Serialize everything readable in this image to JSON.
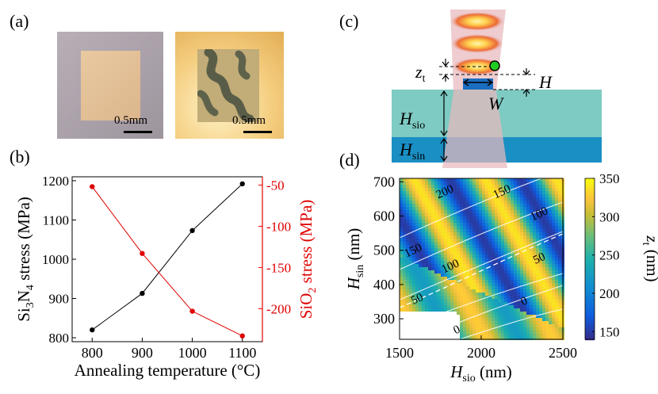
{
  "panels": {
    "a": {
      "label": "(a)",
      "scalebar_left": "0.5mm",
      "scalebar_right": "0.5mm"
    },
    "b": {
      "label": "(b)"
    },
    "c": {
      "label": "(c)",
      "zt_main": "z",
      "zt_sub": "t",
      "h_label": "H",
      "w_label": "W",
      "hsio_main": "H",
      "hsio_sub": "sio",
      "hsin_main": "H",
      "hsin_sub": "sin"
    },
    "d": {
      "label": "(d)"
    }
  },
  "colors": {
    "black_series": "#000000",
    "red_series": "#e00000",
    "sio_layer": "#7ecbc3",
    "sin_layer": "#1a8fc4",
    "beam": "#e7b8bd",
    "mode_core": "#ffe07a",
    "mode_outer": "#e2462c",
    "waveguide": "#1b6dc0",
    "dot": "#22cc22"
  },
  "chart_data": [
    {
      "type": "line",
      "panel": "b",
      "xlabel": "Annealing temperature (°C)",
      "ylabel_left": {
        "parts": [
          "Si",
          "3",
          "N",
          "4",
          " stress (MPa)"
        ]
      },
      "ylabel_right": {
        "parts": [
          "SiO",
          "2",
          " stress (MPa)"
        ]
      },
      "x": [
        800,
        900,
        1000,
        1100
      ],
      "xticks": [
        "800",
        "900",
        "1000",
        "1100"
      ],
      "xlim": [
        760,
        1140
      ],
      "ylim_left": [
        790,
        1210
      ],
      "yticks_left": [
        "800",
        "900",
        "1000",
        "1100",
        "1200"
      ],
      "ylim_right": [
        -240,
        -40
      ],
      "yticks_right": [
        "-50",
        "-100",
        "-150",
        "-200"
      ],
      "series": [
        {
          "name": "Si3N4 stress",
          "axis": "left",
          "color": "#000000",
          "values": [
            820,
            913,
            1073,
            1192
          ]
        },
        {
          "name": "SiO2 stress",
          "axis": "right",
          "color": "#e00000",
          "values": [
            -52,
            -133,
            -203,
            -233
          ]
        }
      ]
    },
    {
      "type": "heatmap",
      "panel": "d",
      "xlabel": {
        "main": "H",
        "sub": "sio",
        "unit": " (nm)"
      },
      "ylabel": {
        "main": "H",
        "sub": "sin",
        "unit": " (nm)"
      },
      "xlim": [
        1500,
        2500
      ],
      "ylim": [
        240,
        710
      ],
      "xticks": [
        "1500",
        "2000",
        "2500"
      ],
      "yticks": [
        "300",
        "400",
        "500",
        "600",
        "700"
      ],
      "colorbar": {
        "label_main": "z",
        "label_sub": "t",
        "label_unit": " (nm)",
        "range": [
          140,
          350
        ],
        "ticks": [
          "150",
          "200",
          "250",
          "300",
          "350"
        ]
      },
      "contour_labels": [
        "200",
        "150",
        "150",
        "100",
        "100",
        "50",
        "50",
        "0",
        "0"
      ]
    }
  ]
}
